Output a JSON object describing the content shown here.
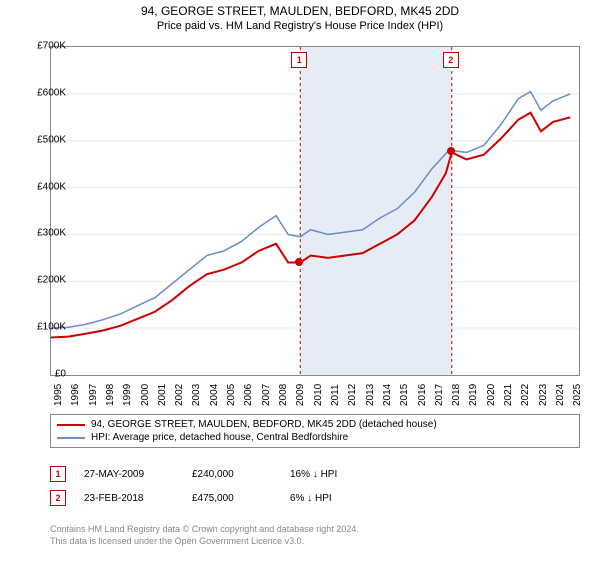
{
  "title": "94, GEORGE STREET, MAULDEN, BEDFORD, MK45 2DD",
  "subtitle": "Price paid vs. HM Land Registry's House Price Index (HPI)",
  "chart": {
    "type": "line",
    "background_color": "#ffffff",
    "grid_color": "#e8e8e8",
    "border_color": "#888888",
    "ylim": [
      0,
      700000
    ],
    "ytick_step": 100000,
    "ytick_labels": [
      "£0",
      "£100K",
      "£200K",
      "£300K",
      "£400K",
      "£500K",
      "£600K",
      "£700K"
    ],
    "xlim": [
      1995,
      2025.5
    ],
    "xtick_labels": [
      "1995",
      "1996",
      "1997",
      "1998",
      "1999",
      "2000",
      "2001",
      "2002",
      "2003",
      "2004",
      "2005",
      "2006",
      "2007",
      "2008",
      "2009",
      "2010",
      "2011",
      "2012",
      "2013",
      "2014",
      "2015",
      "2016",
      "2017",
      "2018",
      "2019",
      "2020",
      "2021",
      "2022",
      "2023",
      "2024",
      "2025"
    ],
    "shade_ranges": [
      {
        "x0": 2009.4,
        "x1": 2018.15,
        "color": "#e6ecf5"
      }
    ],
    "vlines": [
      {
        "x": 2009.4,
        "color": "#cc0000",
        "marker_label": "1"
      },
      {
        "x": 2018.15,
        "color": "#cc0000",
        "marker_label": "2"
      }
    ],
    "sale_points": [
      {
        "x": 2009.4,
        "y": 240000,
        "color": "#cc0000"
      },
      {
        "x": 2018.15,
        "y": 475000,
        "color": "#cc0000"
      }
    ],
    "series": [
      {
        "name": "property",
        "label": "94, GEORGE STREET, MAULDEN, BEDFORD, MK45 2DD (detached house)",
        "color": "#cc0000",
        "line_width": 2,
        "data": [
          [
            1995,
            80000
          ],
          [
            1996,
            82000
          ],
          [
            1997,
            88000
          ],
          [
            1998,
            95000
          ],
          [
            1999,
            105000
          ],
          [
            2000,
            120000
          ],
          [
            2001,
            135000
          ],
          [
            2002,
            160000
          ],
          [
            2003,
            190000
          ],
          [
            2004,
            215000
          ],
          [
            2005,
            225000
          ],
          [
            2006,
            240000
          ],
          [
            2007,
            265000
          ],
          [
            2008,
            280000
          ],
          [
            2008.7,
            240000
          ],
          [
            2009.4,
            240000
          ],
          [
            2010,
            255000
          ],
          [
            2011,
            250000
          ],
          [
            2012,
            255000
          ],
          [
            2013,
            260000
          ],
          [
            2014,
            280000
          ],
          [
            2015,
            300000
          ],
          [
            2016,
            330000
          ],
          [
            2017,
            380000
          ],
          [
            2017.8,
            430000
          ],
          [
            2018.15,
            475000
          ],
          [
            2019,
            460000
          ],
          [
            2020,
            470000
          ],
          [
            2021,
            505000
          ],
          [
            2022,
            545000
          ],
          [
            2022.7,
            560000
          ],
          [
            2023.3,
            520000
          ],
          [
            2024,
            540000
          ],
          [
            2025,
            550000
          ]
        ]
      },
      {
        "name": "hpi",
        "label": "HPI: Average price, detached house, Central Bedfordshire",
        "color": "#6a8cc7",
        "line_width": 1.5,
        "data": [
          [
            1995,
            100000
          ],
          [
            1996,
            102000
          ],
          [
            1997,
            108000
          ],
          [
            1998,
            118000
          ],
          [
            1999,
            130000
          ],
          [
            2000,
            148000
          ],
          [
            2001,
            165000
          ],
          [
            2002,
            195000
          ],
          [
            2003,
            225000
          ],
          [
            2004,
            255000
          ],
          [
            2005,
            265000
          ],
          [
            2006,
            285000
          ],
          [
            2007,
            315000
          ],
          [
            2008,
            340000
          ],
          [
            2008.7,
            300000
          ],
          [
            2009.4,
            295000
          ],
          [
            2010,
            310000
          ],
          [
            2011,
            300000
          ],
          [
            2012,
            305000
          ],
          [
            2013,
            310000
          ],
          [
            2014,
            335000
          ],
          [
            2015,
            355000
          ],
          [
            2016,
            390000
          ],
          [
            2017,
            440000
          ],
          [
            2018,
            480000
          ],
          [
            2019,
            475000
          ],
          [
            2020,
            490000
          ],
          [
            2021,
            535000
          ],
          [
            2022,
            590000
          ],
          [
            2022.7,
            605000
          ],
          [
            2023.3,
            565000
          ],
          [
            2024,
            585000
          ],
          [
            2025,
            600000
          ]
        ]
      }
    ]
  },
  "legend": {
    "rows": [
      {
        "color": "#cc0000",
        "label": "94, GEORGE STREET, MAULDEN, BEDFORD, MK45 2DD (detached house)"
      },
      {
        "color": "#6a8cc7",
        "label": "HPI: Average price, detached house, Central Bedfordshire"
      }
    ]
  },
  "sales": [
    {
      "marker": "1",
      "color": "#cc0000",
      "date": "27-MAY-2009",
      "price": "£240,000",
      "hpi": "16% ↓ HPI"
    },
    {
      "marker": "2",
      "color": "#cc0000",
      "date": "23-FEB-2018",
      "price": "£475,000",
      "hpi": "6% ↓ HPI"
    }
  ],
  "footer": {
    "line1": "Contains HM Land Registry data © Crown copyright and database right 2024.",
    "line2": "This data is licensed under the Open Government Licence v3.0."
  }
}
